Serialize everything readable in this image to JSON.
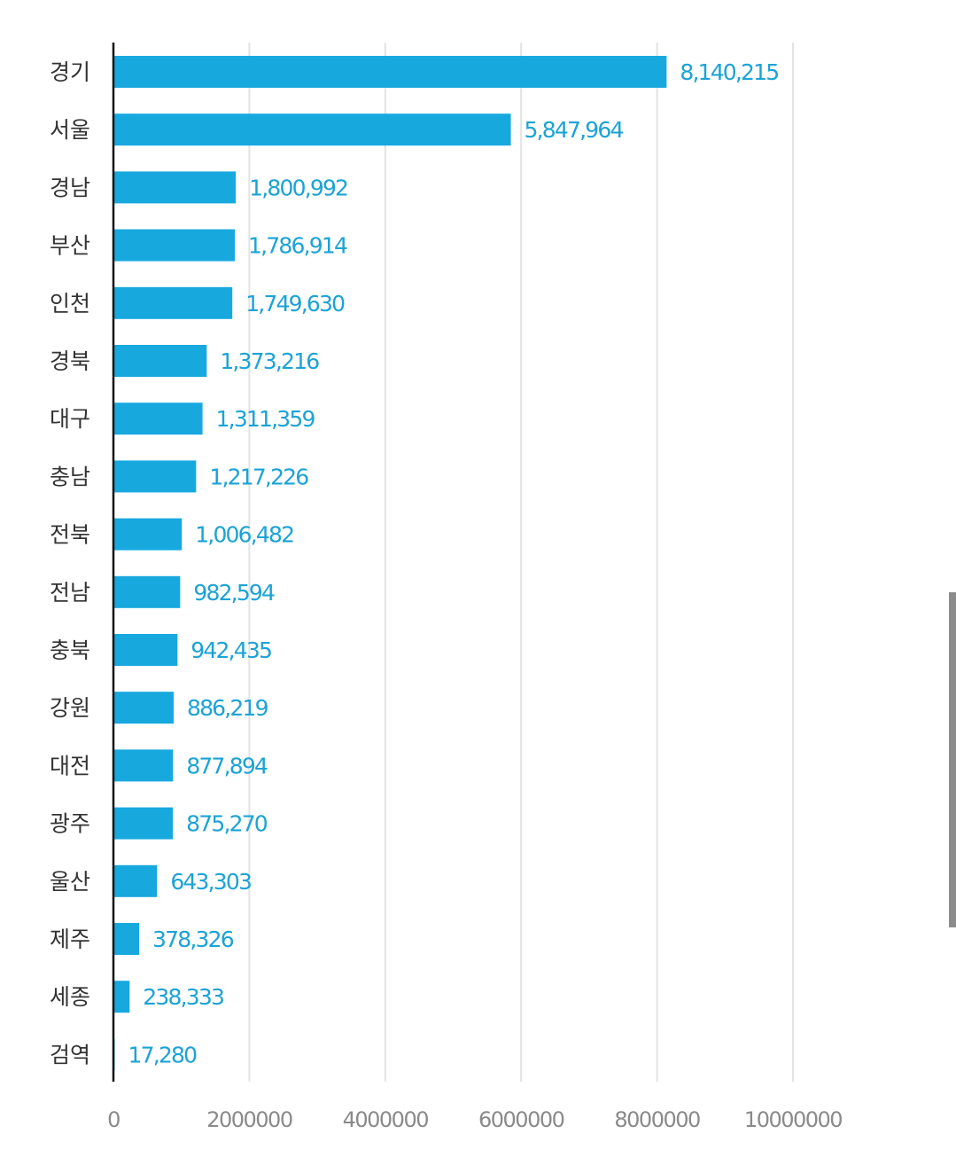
{
  "colors": {
    "bar": "#17a8de",
    "value_label": "#1ba3d6",
    "category_label": "#333333",
    "tick_label": "#8a8a8a",
    "grid": "#e3e3e3",
    "axis": "#111111"
  },
  "chart_data": {
    "type": "bar",
    "orientation": "horizontal",
    "title": "",
    "xlabel": "",
    "ylabel": "",
    "categories": [
      "경기",
      "서울",
      "경남",
      "부산",
      "인천",
      "경북",
      "대구",
      "충남",
      "전북",
      "전남",
      "충북",
      "강원",
      "대전",
      "광주",
      "울산",
      "제주",
      "세종",
      "검역"
    ],
    "values": [
      8140215,
      5847964,
      1800992,
      1786914,
      1749630,
      1373216,
      1311359,
      1217226,
      1006482,
      982594,
      942435,
      886219,
      877894,
      875270,
      643303,
      378326,
      238333,
      17280
    ],
    "value_labels": [
      "8,140,215",
      "5,847,964",
      "1,800,992",
      "1,786,914",
      "1,749,630",
      "1,373,216",
      "1,311,359",
      "1,217,226",
      "1,006,482",
      "982,594",
      "942,435",
      "886,219",
      "877,894",
      "875,270",
      "643,303",
      "378,326",
      "238,333",
      "17,280"
    ],
    "xlim": [
      0,
      10000000
    ],
    "x_ticks": [
      0,
      2000000,
      4000000,
      6000000,
      8000000,
      10000000
    ],
    "x_tick_labels": [
      "0",
      "2000000",
      "4000000",
      "6000000",
      "8000000",
      "10000000"
    ],
    "grid": true,
    "legend": "none"
  }
}
